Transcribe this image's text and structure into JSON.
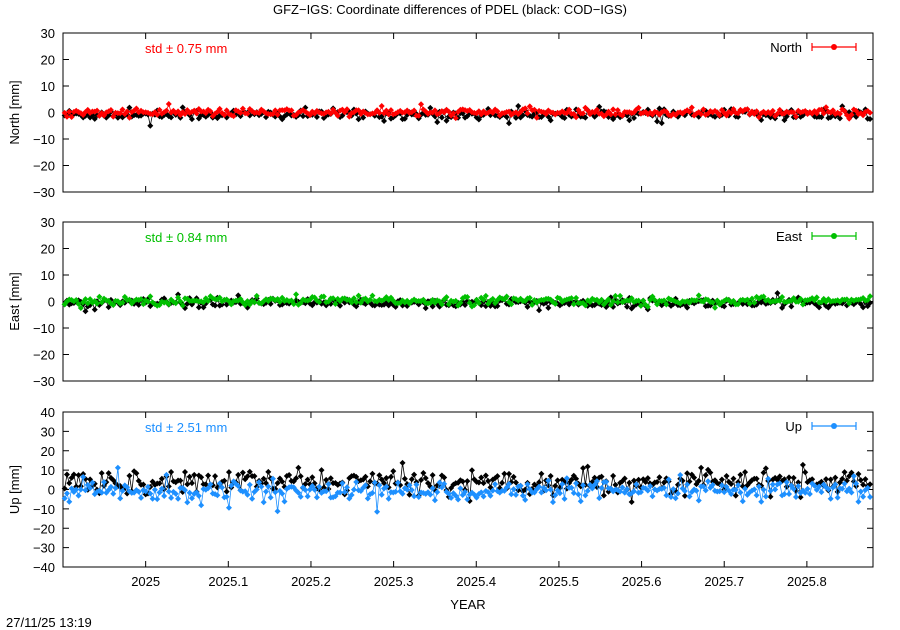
{
  "title": "GFZ−IGS: Coordinate differences of PDEL (black: COD−IGS)",
  "timestamp": "27/11/25 13:19",
  "colors": {
    "north": "#ff0000",
    "east": "#00c000",
    "up": "#1e90ff",
    "comparison": "#000000"
  },
  "chart_data": [
    {
      "type": "scatter",
      "panel": "north",
      "ylabel": "North [mm]",
      "ylim": [
        -30,
        30
      ],
      "yticks": [
        -30,
        -20,
        -10,
        0,
        10,
        20,
        30
      ],
      "xlim": [
        2024.9,
        2025.88
      ],
      "legend": "North",
      "legend_position": "top-right",
      "std_label": "std ± 0.75 mm",
      "grid": false,
      "series": [
        {
          "name": "North",
          "color": "#ff0000",
          "mean": 0.0,
          "std": 0.75
        },
        {
          "color": "#000000",
          "mean": -0.8,
          "std": 1.0
        }
      ]
    },
    {
      "type": "scatter",
      "panel": "east",
      "ylabel": "East [mm]",
      "ylim": [
        -30,
        30
      ],
      "yticks": [
        -30,
        -20,
        -10,
        0,
        10,
        20,
        30
      ],
      "xlim": [
        2024.9,
        2025.88
      ],
      "legend": "East",
      "legend_position": "top-right",
      "std_label": "std ± 0.84 mm",
      "grid": false,
      "series": [
        {
          "name": "East",
          "color": "#00c000",
          "mean": 0.3,
          "std": 0.84
        },
        {
          "color": "#000000",
          "mean": -0.6,
          "std": 0.9
        }
      ]
    },
    {
      "type": "scatter",
      "panel": "up",
      "ylabel": "Up [mm]",
      "ylim": [
        -40,
        40
      ],
      "yticks": [
        -40,
        -30,
        -20,
        -10,
        0,
        10,
        20,
        30,
        40
      ],
      "xlim": [
        2024.9,
        2025.88
      ],
      "legend": "Up",
      "legend_position": "top-right",
      "std_label": "std ± 2.51 mm",
      "grid": false,
      "series": [
        {
          "name": "Up",
          "color": "#1e90ff",
          "mean": -1.0,
          "std": 2.51
        },
        {
          "color": "#000000",
          "mean": 4.0,
          "std": 3.0
        }
      ]
    }
  ],
  "xaxis": {
    "xlabel": "YEAR",
    "ticks": [
      2025,
      2025.1,
      2025.2,
      2025.3,
      2025.4,
      2025.5,
      2025.6,
      2025.7,
      2025.8
    ],
    "tick_labels": [
      "2025",
      "2025.1",
      "2025.2",
      "2025.3",
      "2025.4",
      "2025.5",
      "2025.6",
      "2025.7",
      "2025.8"
    ]
  }
}
